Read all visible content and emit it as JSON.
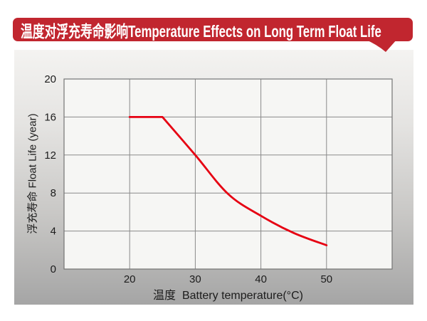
{
  "banner": {
    "title": "温度对浮充寿命影响Temperature Effects on Long Term Float Life"
  },
  "chart_data": {
    "type": "line",
    "title": "温度对浮充寿命影响Temperature Effects on Long Term Float Life",
    "xlabel": "温度  Battery temperature(°C)",
    "ylabel": "浮充寿命 Float Life (year)",
    "xlim": [
      10,
      60
    ],
    "ylim": [
      0,
      20
    ],
    "xticks": [
      20,
      30,
      40,
      50
    ],
    "yticks": [
      0,
      4,
      8,
      12,
      16,
      20
    ],
    "xtick_labels": [
      "20",
      "30",
      "40",
      "50"
    ],
    "ytick_labels": [
      "0",
      "4",
      "8",
      "12",
      "16",
      "20"
    ],
    "grid": true,
    "legend": "none",
    "series": [
      {
        "name": "float-life-vs-temperature",
        "color": "#E60012",
        "x": [
          20,
          25,
          30,
          35,
          40,
          45,
          50
        ],
        "y": [
          16,
          16,
          12,
          7.9,
          5.6,
          3.8,
          2.5
        ]
      }
    ]
  },
  "colors": {
    "banner_bg": "#C1262F",
    "banner_text": "#FFFFFF",
    "curve": "#E60012",
    "grid": "#8A8A8A",
    "plot_border": "#747474",
    "plot_bg": "#F6F6F4",
    "panel_top": "#F4F3F1",
    "panel_bottom": "#A5A5A5",
    "text": "#1C1C1C"
  }
}
